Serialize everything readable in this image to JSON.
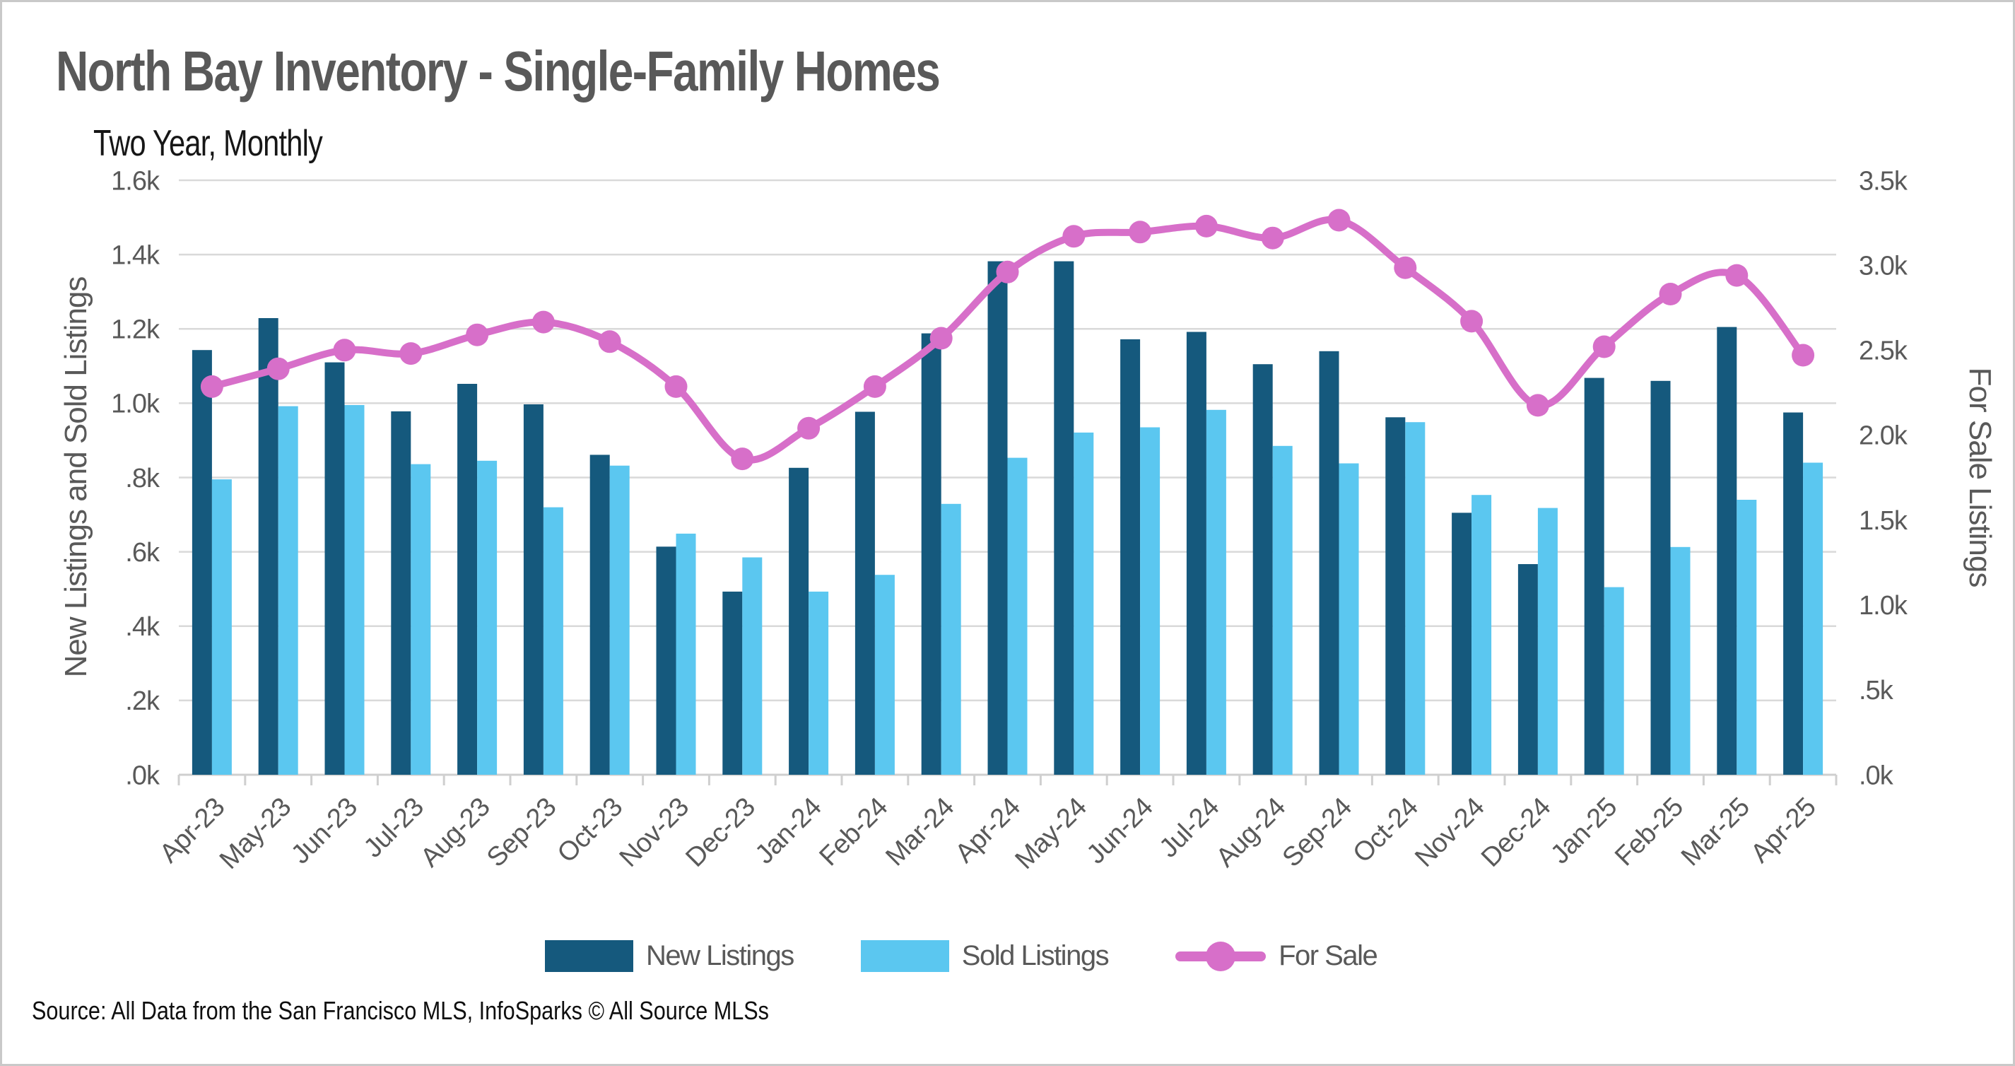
{
  "header": {
    "title": "North Bay Inventory - Single-Family Homes",
    "subtitle": "Two Year, Monthly"
  },
  "legend": {
    "new_listings": "New Listings",
    "sold_listings": "Sold Listings",
    "for_sale": "For Sale"
  },
  "source": "Source: All Data from the San Francisco MLS, InfoSparks © All Source MLSs",
  "colors": {
    "new_listings": "#15597d",
    "sold_listings": "#5bc7f0",
    "for_sale": "#d76fc9",
    "gridline": "#d9d9d9",
    "axis_line": "#cfcfcf",
    "text_gray": "#595959"
  },
  "chart_data": {
    "type": "bar",
    "subtype": "grouped-bars-with-line",
    "title": "North Bay Inventory - Single-Family Homes",
    "subtitle": "Two Year, Monthly",
    "grid": "horizontal",
    "legend_position": "bottom",
    "categories": [
      "Apr-23",
      "May-23",
      "Jun-23",
      "Jul-23",
      "Aug-23",
      "Sep-23",
      "Oct-23",
      "Nov-23",
      "Dec-23",
      "Jan-24",
      "Feb-24",
      "Mar-24",
      "Apr-24",
      "May-24",
      "Jun-24",
      "Jul-24",
      "Aug-24",
      "Sep-24",
      "Oct-24",
      "Nov-24",
      "Dec-24",
      "Jan-25",
      "Feb-25",
      "Mar-25",
      "Apr-25"
    ],
    "series": [
      {
        "name": "New Listings",
        "type": "bar",
        "axis": "left",
        "color": "#15597d",
        "values": [
          1143,
          1229,
          1110,
          978,
          1052,
          997,
          861,
          614,
          493,
          826,
          977,
          1188,
          1382,
          1382,
          1172,
          1192,
          1105,
          1140,
          962,
          705,
          567,
          1068,
          1060,
          1205,
          975
        ]
      },
      {
        "name": "Sold Listings",
        "type": "bar",
        "axis": "left",
        "color": "#5bc7f0",
        "values": [
          795,
          992,
          995,
          836,
          845,
          720,
          832,
          649,
          585,
          493,
          538,
          729,
          853,
          921,
          935,
          982,
          885,
          838,
          949,
          753,
          718,
          505,
          613,
          740,
          840
        ]
      },
      {
        "name": "For Sale",
        "type": "line",
        "axis": "right",
        "color": "#d76fc9",
        "values": [
          2285,
          2390,
          2500,
          2480,
          2590,
          2665,
          2550,
          2285,
          1860,
          2040,
          2285,
          2570,
          2960,
          3170,
          3195,
          3230,
          3160,
          3265,
          2985,
          2670,
          2175,
          2520,
          2830,
          2940,
          2470
        ]
      }
    ],
    "left_axis": {
      "label": "New Listings and Sold Listings",
      "min": 0,
      "max": 1600,
      "tick_step": 200,
      "tick_labels": [
        ".0k",
        ".2k",
        ".4k",
        ".6k",
        ".8k",
        "1.0k",
        "1.2k",
        "1.4k",
        "1.6k"
      ]
    },
    "right_axis": {
      "label": "For Sale Listings",
      "min": 0,
      "max": 3500,
      "tick_step": 500,
      "tick_labels": [
        ".0k",
        ".5k",
        "1.0k",
        "1.5k",
        "2.0k",
        "2.5k",
        "3.0k",
        "3.5k"
      ]
    }
  }
}
